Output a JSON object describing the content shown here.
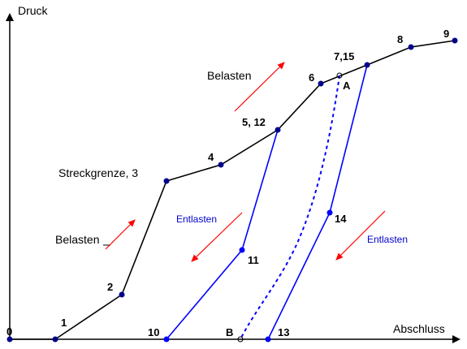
{
  "axes": {
    "y_label": "Druck",
    "x_label": "Abschluss"
  },
  "points": {
    "p0": "0",
    "p1": "1",
    "p2": "2",
    "p3": "Streckgrenze, 3",
    "p4": "4",
    "p5": "5, 12",
    "p6": "6",
    "p7": "7,15",
    "p8": "8",
    "p9": "9",
    "p10": "10",
    "p11": "11",
    "p13": "13",
    "p14": "14",
    "pA": "A",
    "pB": "B"
  },
  "annotations": {
    "load_left": "Belasten",
    "load_top": "Belasten",
    "unload_left": "Entlasten",
    "unload_right": "Entlasten"
  },
  "colors": {
    "load_curve": "#000000",
    "unload_curve": "#0000ff",
    "arrows": "#ff0000",
    "dots": "#00008b"
  }
}
